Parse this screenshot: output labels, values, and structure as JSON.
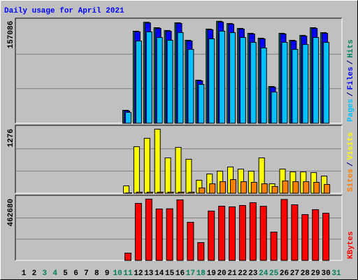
{
  "chart_data": {
    "type": "bar",
    "title": "Daily usage for April 2021",
    "categories": [
      1,
      2,
      3,
      4,
      5,
      6,
      7,
      8,
      9,
      10,
      11,
      12,
      13,
      14,
      15,
      16,
      17,
      18,
      19,
      20,
      21,
      22,
      23,
      24,
      25,
      26,
      27,
      28,
      29,
      30,
      31
    ],
    "category_colors": [
      "#000000",
      "#000000",
      "#00805c",
      "#00805c",
      "#000000",
      "#000000",
      "#000000",
      "#000000",
      "#000000",
      "#00805c",
      "#00805c",
      "#000000",
      "#000000",
      "#000000",
      "#000000",
      "#000000",
      "#00805c",
      "#00805c",
      "#000000",
      "#000000",
      "#000000",
      "#000000",
      "#000000",
      "#00805c",
      "#00805c",
      "#000000",
      "#000000",
      "#000000",
      "#000000",
      "#000000",
      "#00805c"
    ],
    "legend_separator": "/",
    "panels": [
      {
        "ylim": [
          0,
          159000
        ],
        "yticks": [
          157086
        ],
        "series": [
          {
            "name": "Pages",
            "color": "#00c0ff",
            "values": [
              null,
              null,
              null,
              null,
              null,
              null,
              null,
              null,
              null,
              null,
              17200,
              126700,
              140700,
              132100,
              127800,
              139600,
              113800,
              60100,
              130000,
              141800,
              139600,
              132100,
              124600,
              116000,
              48300,
              124600,
              113800,
              121300,
              132100,
              124600,
              null
            ]
          },
          {
            "name": "Files",
            "color": "#0000ff",
            "values": [
              null,
              null,
              null,
              null,
              null,
              null,
              null,
              null,
              null,
              null,
              19300,
              140700,
              154400,
              146000,
              141700,
              153600,
              126700,
              65500,
              143900,
              155700,
              152500,
              145000,
              137400,
              129900,
              55800,
              137400,
              126700,
              134200,
              146000,
              138500,
              null
            ]
          },
          {
            "name": "Hits",
            "color": "#00805c",
            "values": [
              null,
              null,
              null,
              null,
              null,
              null,
              null,
              null,
              null,
              null,
              20400,
              141800,
              155500,
              147100,
              142800,
              154700,
              127800,
              66600,
              145000,
              157086,
              153600,
              146100,
              138500,
              131000,
              56900,
              138500,
              127800,
              135300,
              147100,
              139600,
              null
            ]
          }
        ]
      },
      {
        "ylim": [
          0,
          1318
        ],
        "yticks": [
          1276
        ],
        "series": [
          {
            "name": "Sites",
            "color": "#ff8000",
            "values": [
              null,
              null,
              null,
              null,
              null,
              null,
              null,
              null,
              null,
              null,
              14,
              28,
              28,
              28,
              28,
              28,
              28,
              111,
              194,
              236,
              277,
              236,
              222,
              194,
              139,
              250,
              236,
              236,
              222,
              180,
              null
            ]
          },
          {
            "name": "Visits",
            "color": "#ffff00",
            "values": [
              null,
              null,
              null,
              null,
              null,
              null,
              null,
              null,
              null,
              null,
              153,
              929,
              1096,
              1276,
              707,
              915,
              680,
              264,
              388,
              444,
              527,
              485,
              444,
              707,
              194,
              485,
              430,
              430,
              416,
              347,
              null
            ]
          }
        ]
      },
      {
        "ylim": [
          0,
          478000
        ],
        "yticks": [
          462680
        ],
        "series": [
          {
            "name": "KBytes",
            "color": "#ff0000",
            "values": [
              null,
              null,
              null,
              null,
              null,
              null,
              null,
              null,
              null,
              null,
              57800,
              430700,
              462680,
              388700,
              390100,
              457000,
              288900,
              136600,
              373000,
              409700,
              404500,
              415000,
              436000,
              409000,
              215400,
              460000,
              420200,
              346700,
              383500,
              357200,
              null
            ]
          }
        ]
      }
    ]
  }
}
